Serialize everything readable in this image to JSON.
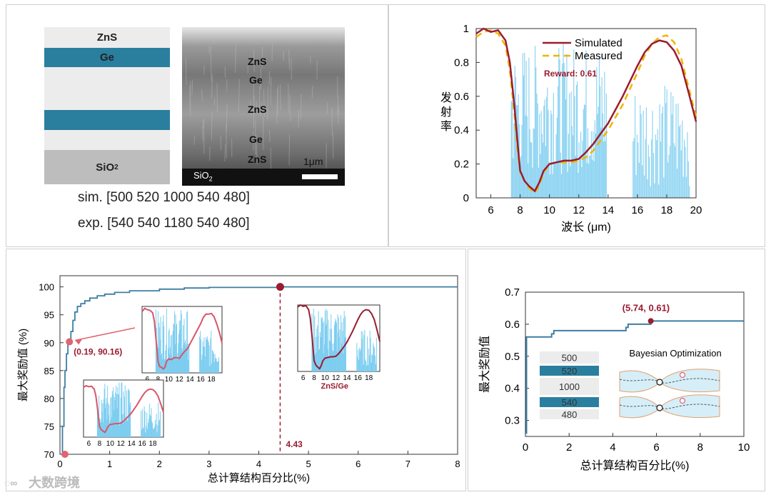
{
  "colors": {
    "crimson": "#9b1b30",
    "gold": "#f0b400",
    "sky": "#7ccdf0",
    "teal": "#2a7f9e",
    "steel": "#3e7ea3",
    "gray_stack": "#ececec",
    "substrate": "#bdbdbd"
  },
  "panel_a": {
    "layers": [
      "ZnS",
      "Ge",
      "ZnS",
      "Ge",
      "ZnS",
      "SiO2"
    ],
    "substrate_main": "SiO",
    "substrate_sub": "2",
    "sem_labels": [
      "ZnS",
      "Ge",
      "ZnS",
      "Ge",
      "ZnS"
    ],
    "sem_scale": "1μm",
    "sim_text": "sim. [500 520 1000 540 480]",
    "exp_text": "exp. [540 540 1180 540 480]"
  },
  "chart_data": [
    {
      "type": "line",
      "id": "emissivity",
      "title": "",
      "xlabel": "波长 (μm)",
      "ylabel": "发射率",
      "xlim": [
        5,
        20
      ],
      "ylim": [
        0,
        1
      ],
      "xticks": [
        6,
        8,
        10,
        12,
        14,
        16,
        18,
        20
      ],
      "yticks": [
        0,
        0.2,
        0.4,
        0.6,
        0.8,
        1
      ],
      "ytick_labels": [
        "0",
        "0.2",
        "0.4",
        "0.6",
        "0.8",
        "1"
      ],
      "annotation": "Reward: 0.61",
      "series": [
        {
          "name": "Simulated",
          "style": "solid",
          "x": [
            5,
            5.5,
            6,
            6.5,
            7,
            7.3,
            7.6,
            7.8,
            8,
            8.3,
            8.6,
            9,
            9.3,
            9.6,
            10,
            10.5,
            11,
            11.5,
            12,
            12.5,
            13,
            13.5,
            14,
            15,
            16,
            16.5,
            17,
            17.5,
            18,
            18.5,
            19,
            19.5,
            20
          ],
          "y": [
            0.97,
            1.0,
            0.98,
            0.99,
            0.93,
            0.8,
            0.55,
            0.35,
            0.16,
            0.1,
            0.07,
            0.04,
            0.09,
            0.16,
            0.2,
            0.21,
            0.22,
            0.22,
            0.23,
            0.27,
            0.32,
            0.38,
            0.44,
            0.6,
            0.78,
            0.86,
            0.91,
            0.93,
            0.92,
            0.87,
            0.78,
            0.62,
            0.45
          ]
        },
        {
          "name": "Measured",
          "style": "dashed",
          "x": [
            5,
            5.5,
            6,
            6.5,
            7,
            7.3,
            7.6,
            7.8,
            8,
            8.3,
            8.6,
            9,
            9.3,
            9.6,
            10,
            10.5,
            11,
            11.5,
            12,
            12.5,
            13,
            13.5,
            14,
            15,
            16,
            16.5,
            17,
            17.5,
            18,
            18.5,
            19,
            19.5,
            20
          ],
          "y": [
            0.95,
            0.98,
            0.99,
            0.97,
            0.9,
            0.75,
            0.5,
            0.3,
            0.15,
            0.1,
            0.06,
            0.03,
            0.07,
            0.15,
            0.2,
            0.21,
            0.21,
            0.21,
            0.22,
            0.24,
            0.28,
            0.34,
            0.4,
            0.55,
            0.74,
            0.84,
            0.91,
            0.95,
            0.96,
            0.92,
            0.82,
            0.65,
            0.48
          ]
        }
      ]
    },
    {
      "type": "line",
      "id": "optimization",
      "xlabel": "总计算结构百分比(%)",
      "ylabel": "最大奖励值 (%)",
      "xlim": [
        0,
        8
      ],
      "ylim": [
        70,
        102
      ],
      "xticks": [
        0,
        1,
        2,
        3,
        4,
        5,
        6,
        7,
        8
      ],
      "yticks": [
        70,
        75,
        80,
        85,
        90,
        95,
        100
      ],
      "series": [
        {
          "name": "best",
          "x": [
            0.02,
            0.05,
            0.08,
            0.1,
            0.13,
            0.16,
            0.19,
            0.22,
            0.26,
            0.3,
            0.35,
            0.42,
            0.5,
            0.6,
            0.75,
            0.9,
            1.1,
            1.4,
            2.0,
            2.5,
            3.0,
            4.43,
            8.0
          ],
          "y": [
            70,
            75,
            82,
            85,
            88,
            90,
            90.16,
            92,
            94,
            95.5,
            96.5,
            97,
            97.5,
            98,
            98.4,
            98.7,
            99,
            99.3,
            99.6,
            99.8,
            99.9,
            100,
            100
          ]
        }
      ],
      "points": [
        {
          "x": 0.1,
          "y": 70,
          "label": ""
        },
        {
          "x": 0.19,
          "y": 90.16,
          "label": "(0.19, 90.16)"
        },
        {
          "x": 4.43,
          "y": 100,
          "label": ""
        }
      ],
      "vline": {
        "x": 4.43,
        "label": "4.43"
      },
      "inset_xticks": [
        "6",
        "8",
        "10",
        "12",
        "14",
        "16",
        "18"
      ],
      "inset_label": "ZnS/Ge"
    },
    {
      "type": "line",
      "id": "bayesian",
      "xlabel": "总计算结构百分比(%)",
      "ylabel": "最大奖励值",
      "xlim": [
        0,
        10
      ],
      "ylim": [
        0.25,
        0.7
      ],
      "xticks": [
        0,
        2,
        4,
        6,
        8,
        10
      ],
      "yticks": [
        0.3,
        0.4,
        0.5,
        0.6,
        0.7
      ],
      "ytick_labels": [
        "0.3",
        "0.4",
        "0.5",
        "0.6",
        "0.7"
      ],
      "series": [
        {
          "name": "best",
          "x": [
            0,
            0.05,
            0.1,
            1.2,
            1.3,
            2.0,
            2.1,
            4.6,
            4.7,
            5.74,
            6.0,
            10
          ],
          "y": [
            0.26,
            0.56,
            0.56,
            0.57,
            0.58,
            0.58,
            0.58,
            0.59,
            0.6,
            0.61,
            0.61,
            0.61
          ]
        }
      ],
      "points": [
        {
          "x": 5.74,
          "y": 0.61,
          "label": "(5.74, 0.61)"
        }
      ],
      "inset_layers": [
        "500",
        "520",
        "1000",
        "540",
        "480"
      ],
      "inset_title": "Bayesian Optimization"
    }
  ],
  "watermark": "大数跨境"
}
